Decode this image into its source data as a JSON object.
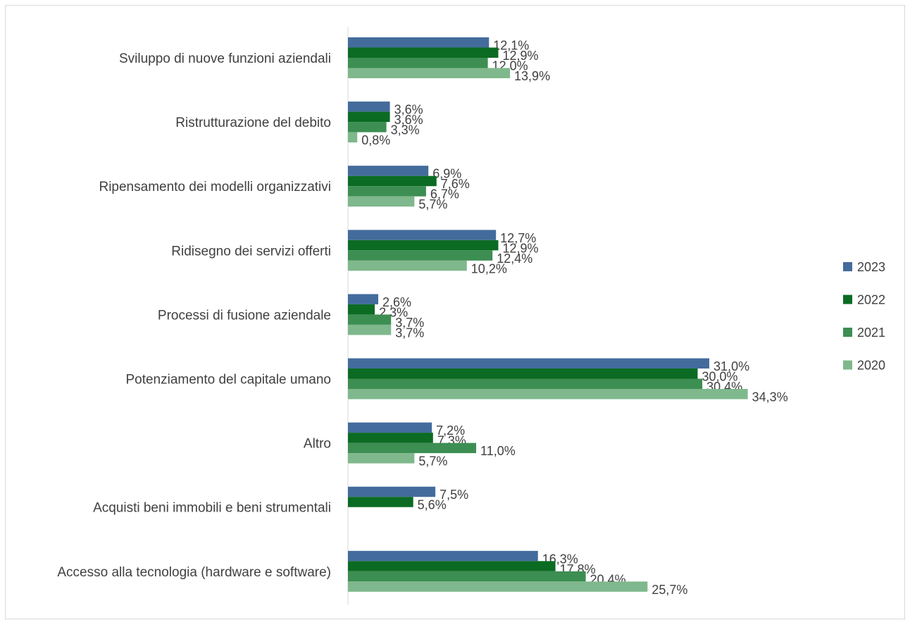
{
  "chart_data": {
    "type": "bar",
    "orientation": "horizontal",
    "categories": [
      "Sviluppo di nuove funzioni aziendali",
      "Ristrutturazione del debito",
      "Ripensamento dei modelli organizzativi",
      "Ridisegno dei servizi offerti",
      "Processi di fusione aziendale",
      "Potenziamento del capitale umano",
      "Altro",
      "Acquisti beni immobili e beni strumentali",
      "Accesso alla tecnologia (hardware e software)"
    ],
    "series": [
      {
        "name": "2023",
        "color": "#436c9c",
        "values": [
          12.1,
          3.6,
          6.9,
          12.7,
          2.6,
          31.0,
          7.2,
          7.5,
          16.3
        ],
        "labels": [
          "12,1%",
          "3,6%",
          "6,9%",
          "12,7%",
          "2,6%",
          "31,0%",
          "7,2%",
          "7,5%",
          "16,3%"
        ]
      },
      {
        "name": "2022",
        "color": "#0b6b23",
        "values": [
          12.9,
          3.6,
          7.6,
          12.9,
          2.3,
          30.0,
          7.3,
          5.6,
          17.8
        ],
        "labels": [
          "12,9%",
          "3,6%",
          "7,6%",
          "12,9%",
          "2,3%",
          "30,0%",
          "7,3%",
          "5,6%",
          "17,8%"
        ]
      },
      {
        "name": "2021",
        "color": "#3d8e52",
        "values": [
          12.0,
          3.3,
          6.7,
          12.4,
          3.7,
          30.4,
          11.0,
          null,
          20.4
        ],
        "labels": [
          "12,0%",
          "3,3%",
          "6,7%",
          "12,4%",
          "3,7%",
          "30,4%",
          "11,0%",
          null,
          "20,4%"
        ]
      },
      {
        "name": "2020",
        "color": "#7fb88c",
        "values": [
          13.9,
          0.8,
          5.7,
          10.2,
          3.7,
          34.3,
          5.7,
          null,
          25.7
        ],
        "labels": [
          "13,9%",
          "0,8%",
          "5,7%",
          "10,2%",
          "3,7%",
          "34,3%",
          "5,7%",
          null,
          "25,7%"
        ]
      }
    ],
    "xlim": [
      0,
      40
    ],
    "grid": false,
    "legend": "right",
    "title": "",
    "xlabel": "",
    "ylabel": ""
  }
}
